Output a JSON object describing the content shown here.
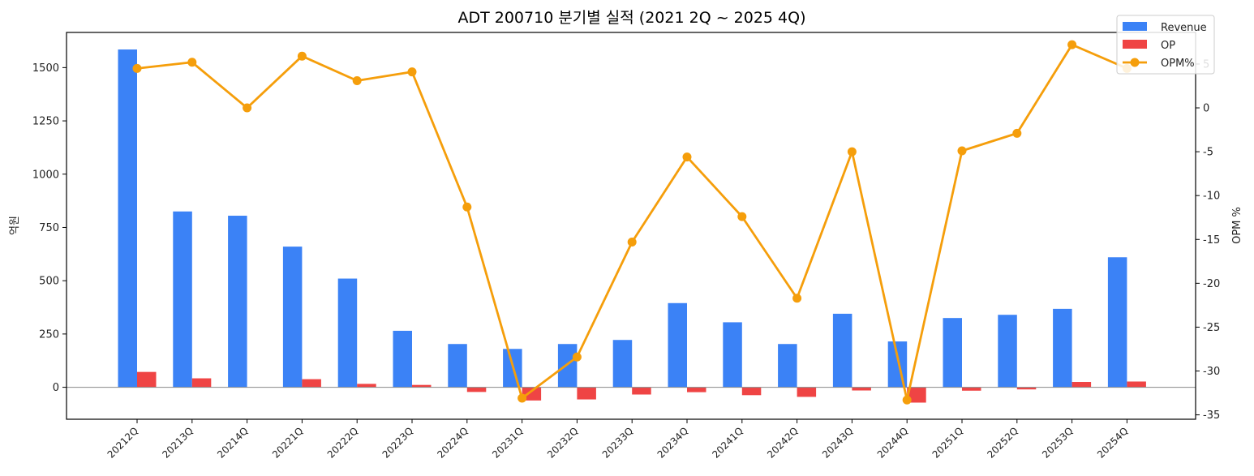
{
  "chart_data": {
    "type": "bar",
    "title": "ADT 200710 분기별 실적 (2021 2Q ~ 2025 4Q)",
    "categories": [
      "20212Q",
      "20213Q",
      "20214Q",
      "20221Q",
      "20222Q",
      "20223Q",
      "20224Q",
      "20231Q",
      "20232Q",
      "20233Q",
      "20234Q",
      "20241Q",
      "20242Q",
      "20243Q",
      "20244Q",
      "20251Q",
      "20252Q",
      "20253Q",
      "20254Q"
    ],
    "series": [
      {
        "name": "Revenue",
        "kind": "bar",
        "axis": "left",
        "color": "#3b82f6",
        "values": [
          1585,
          825,
          805,
          660,
          510,
          265,
          203,
          180,
          203,
          222,
          395,
          305,
          203,
          345,
          215,
          325,
          340,
          368,
          610
        ]
      },
      {
        "name": "OP",
        "kind": "bar",
        "axis": "left",
        "color": "#ef4444",
        "values": [
          72,
          42,
          0,
          38,
          16,
          11,
          -22,
          -62,
          -57,
          -34,
          -23,
          -37,
          -45,
          -15,
          -72,
          -16,
          -10,
          25,
          27
        ]
      },
      {
        "name": "OPM%",
        "kind": "line",
        "axis": "right",
        "color": "#f59e0b",
        "values": [
          4.5,
          5.2,
          0.0,
          5.9,
          3.1,
          4.1,
          -11.3,
          -33.1,
          -28.4,
          -15.3,
          -5.6,
          -12.4,
          -21.7,
          -5.0,
          -33.3,
          -4.9,
          -2.9,
          7.2,
          4.5
        ]
      }
    ],
    "ylabel": "억원",
    "y2label": "OPM %",
    "ylim": [
      -150,
      1665
    ],
    "y2lim": [
      -35.5,
      8.6
    ],
    "yticks": [
      0,
      250,
      500,
      750,
      1000,
      1250,
      1500
    ],
    "y2ticks": [
      -35,
      -30,
      -25,
      -20,
      -15,
      -10,
      -5,
      0,
      5
    ],
    "legend": "top-right",
    "grid": false
  }
}
